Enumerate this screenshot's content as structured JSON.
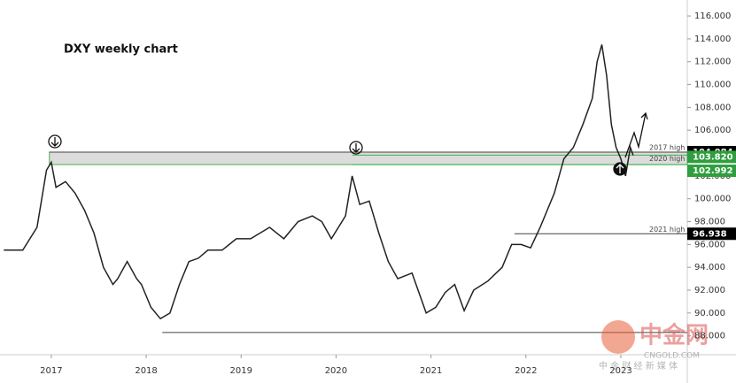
{
  "chart_data": {
    "type": "line",
    "title": "DXY weekly chart",
    "color": "#222222",
    "x": [
      2016.5,
      2016.7,
      2016.85,
      2016.95,
      2017.0,
      2017.05,
      2017.15,
      2017.25,
      2017.35,
      2017.45,
      2017.55,
      2017.65,
      2017.7,
      2017.8,
      2017.9,
      2017.95,
      2018.05,
      2018.15,
      2018.25,
      2018.35,
      2018.45,
      2018.55,
      2018.65,
      2018.8,
      2018.95,
      2019.1,
      2019.3,
      2019.45,
      2019.6,
      2019.75,
      2019.85,
      2019.95,
      2020.1,
      2020.17,
      2020.25,
      2020.35,
      2020.45,
      2020.55,
      2020.65,
      2020.8,
      2020.95,
      2021.05,
      2021.15,
      2021.25,
      2021.35,
      2021.45,
      2021.6,
      2021.75,
      2021.85,
      2021.95,
      2022.05,
      2022.15,
      2022.3,
      2022.4,
      2022.5,
      2022.6,
      2022.7,
      2022.75,
      2022.8,
      2022.85,
      2022.9,
      2022.95,
      2023.0,
      2023.05,
      2023.1,
      2023.13
    ],
    "values": [
      95.5,
      95.5,
      97.5,
      102.5,
      103.2,
      101,
      101.5,
      100.5,
      99,
      97,
      94,
      92.5,
      93,
      94.5,
      93,
      92.5,
      90.5,
      89.5,
      90,
      92.5,
      94.5,
      94.8,
      95.5,
      95.5,
      96.5,
      96.5,
      97.5,
      96.5,
      98,
      98.5,
      98,
      96.5,
      98.5,
      102,
      99.5,
      99.8,
      97,
      94.5,
      93,
      93.5,
      90,
      90.5,
      91.8,
      92.5,
      90.2,
      92,
      92.8,
      94,
      96,
      96,
      95.7,
      97.5,
      100.5,
      103.5,
      104.5,
      106.5,
      108.8,
      112,
      113.5,
      110.8,
      106.5,
      104.5,
      103.5,
      102,
      104.5,
      103.8
    ],
    "xlim": [
      2016.46,
      2023.7
    ],
    "ylim": [
      86.35,
      117.4
    ],
    "xticks": [
      2017,
      2018,
      2019,
      2020,
      2021,
      2022,
      2023
    ],
    "yticks": [
      {
        "value": 88,
        "label": "88.000"
      },
      {
        "value": 90,
        "label": "90.000"
      },
      {
        "value": 92,
        "label": "92.000"
      },
      {
        "value": 94,
        "label": "94.000"
      },
      {
        "value": 96,
        "label": "96.000"
      },
      {
        "value": 98,
        "label": "98.000"
      },
      {
        "value": 100,
        "label": "100.000"
      },
      {
        "value": 102,
        "label": "102.000"
      },
      {
        "value": 104,
        "label": "104.000"
      },
      {
        "value": 106,
        "label": "106.000"
      },
      {
        "value": 108,
        "label": "108.000"
      },
      {
        "value": 110,
        "label": "110.000"
      },
      {
        "value": 112,
        "label": "112.000"
      },
      {
        "value": 114,
        "label": "114.000"
      },
      {
        "value": 116,
        "label": "116.000"
      }
    ],
    "levels": [
      {
        "name": "2017 high",
        "value": 104.084,
        "tag": "104.084",
        "tag_color": "#000000",
        "from": 2016.98
      },
      {
        "name": "2020 high",
        "value": 103.82,
        "tag": "103.820",
        "tag_color": "#2e9e3e",
        "from": 2020.17
      },
      {
        "value": 102.992,
        "tag": "102.992",
        "tag_color": "#2e9e3e",
        "from": 2020.17
      },
      {
        "name": "2021 high",
        "value": 96.938,
        "tag": "96.938",
        "tag_color": "#000000",
        "from": 2021.88
      },
      {
        "value": 88.3,
        "from": 2018.17
      }
    ],
    "watermark": {
      "name": "中金网",
      "site": "CNGOLD.COM",
      "tagline": "中 金 财 经 新 媒 体"
    }
  }
}
